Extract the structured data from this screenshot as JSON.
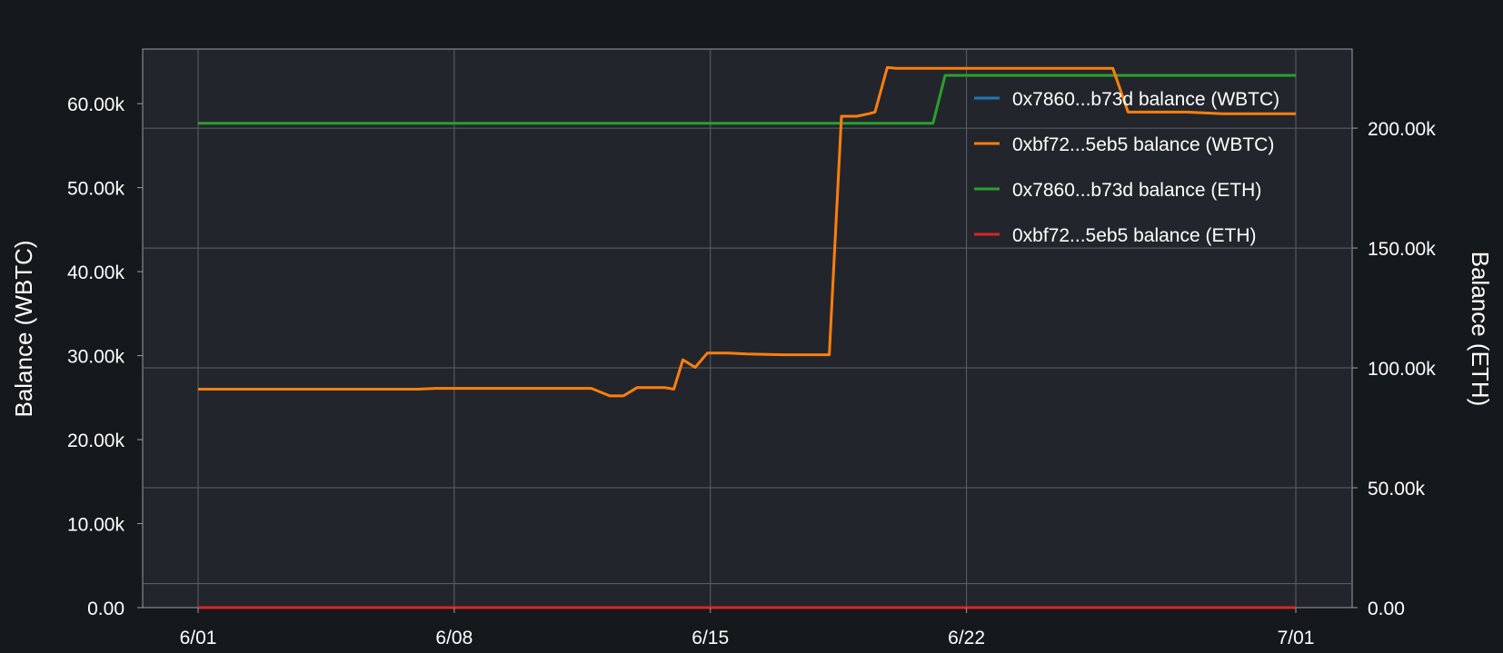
{
  "chart_data": {
    "type": "line",
    "ylabel_left": "Balance (WBTC)",
    "ylabel_right": "Balance (ETH)",
    "x_domain": [
      "2023-06-01",
      "2023-07-01"
    ],
    "x_ticks": [
      {
        "date": "2023-06-01",
        "label": "6/01"
      },
      {
        "date": "2023-06-08",
        "label": "6/08"
      },
      {
        "date": "2023-06-15",
        "label": "6/15"
      },
      {
        "date": "2023-06-22",
        "label": "6/22"
      },
      {
        "date": "2023-07-01",
        "label": "7/01"
      }
    ],
    "ylim_left": [
      0,
      66500
    ],
    "ylim_right": [
      0,
      233000
    ],
    "y_ticks_left": [
      {
        "value": 0,
        "label": "0.00"
      },
      {
        "value": 10000,
        "label": "10.00k"
      },
      {
        "value": 20000,
        "label": "20.00k"
      },
      {
        "value": 30000,
        "label": "30.00k"
      },
      {
        "value": 40000,
        "label": "40.00k"
      },
      {
        "value": 50000,
        "label": "50.00k"
      },
      {
        "value": 60000,
        "label": "60.00k"
      }
    ],
    "y_ticks_right": [
      {
        "value": 0,
        "label": "0.00"
      },
      {
        "value": 50000,
        "label": "50.00k"
      },
      {
        "value": 100000,
        "label": "100.00k"
      },
      {
        "value": 150000,
        "label": "150.00k"
      },
      {
        "value": 200000,
        "label": "200.00k"
      }
    ],
    "grid": true,
    "legend_position": "top-right",
    "series": [
      {
        "name": "0x7860...b73d balance (WBTC)",
        "color": "#1f77b4",
        "axis": "left",
        "points": [
          [
            "2023-06-01T00:00",
            0
          ],
          [
            "2023-07-01T00:00",
            0
          ]
        ]
      },
      {
        "name": "0xbf72...5eb5 balance (WBTC)",
        "color": "#ff7f0e",
        "axis": "left",
        "points": [
          [
            "2023-06-01T00:00",
            26000
          ],
          [
            "2023-06-04T00:00",
            26000
          ],
          [
            "2023-06-07T00:00",
            26000
          ],
          [
            "2023-06-07T12:00",
            26100
          ],
          [
            "2023-06-08T00:00",
            26100
          ],
          [
            "2023-06-11T00:00",
            26100
          ],
          [
            "2023-06-11T18:00",
            26100
          ],
          [
            "2023-06-12T06:00",
            25200
          ],
          [
            "2023-06-12T15:00",
            25200
          ],
          [
            "2023-06-13T00:00",
            26200
          ],
          [
            "2023-06-13T18:00",
            26200
          ],
          [
            "2023-06-14T00:00",
            26000
          ],
          [
            "2023-06-14T06:00",
            29500
          ],
          [
            "2023-06-14T14:00",
            28600
          ],
          [
            "2023-06-14T22:00",
            30300
          ],
          [
            "2023-06-15T12:00",
            30300
          ],
          [
            "2023-06-16T00:00",
            30200
          ],
          [
            "2023-06-17T00:00",
            30100
          ],
          [
            "2023-06-18T00:00",
            30100
          ],
          [
            "2023-06-18T06:00",
            30100
          ],
          [
            "2023-06-18T14:00",
            58500
          ],
          [
            "2023-06-19T00:00",
            58500
          ],
          [
            "2023-06-19T08:00",
            58800
          ],
          [
            "2023-06-19T12:00",
            59000
          ],
          [
            "2023-06-19T20:00",
            64300
          ],
          [
            "2023-06-20T02:00",
            64200
          ],
          [
            "2023-06-21T00:00",
            64200
          ],
          [
            "2023-06-21T12:00",
            64200
          ],
          [
            "2023-06-22T00:00",
            64200
          ],
          [
            "2023-06-23T00:00",
            64200
          ],
          [
            "2023-06-24T00:00",
            64200
          ],
          [
            "2023-06-25T00:00",
            64200
          ],
          [
            "2023-06-26T00:00",
            64200
          ],
          [
            "2023-06-26T10:00",
            59000
          ],
          [
            "2023-06-27T00:00",
            59000
          ],
          [
            "2023-06-28T00:00",
            59000
          ],
          [
            "2023-06-29T00:00",
            58800
          ],
          [
            "2023-07-01T00:00",
            58800
          ]
        ]
      },
      {
        "name": "0x7860...b73d balance (ETH)",
        "color": "#2ca02c",
        "axis": "right",
        "points": [
          [
            "2023-06-01T00:00",
            202000
          ],
          [
            "2023-06-19T00:00",
            202000
          ],
          [
            "2023-06-19T12:00",
            202000
          ],
          [
            "2023-06-20T12:00",
            202000
          ],
          [
            "2023-06-21T02:00",
            202000
          ],
          [
            "2023-06-21T10:00",
            222000
          ],
          [
            "2023-06-25T00:00",
            222000
          ],
          [
            "2023-07-01T00:00",
            222000
          ]
        ]
      },
      {
        "name": "0xbf72...5eb5 balance (ETH)",
        "color": "#d62728",
        "axis": "right",
        "points": [
          [
            "2023-06-01T00:00",
            0
          ],
          [
            "2023-07-01T00:00",
            0
          ]
        ]
      }
    ]
  }
}
